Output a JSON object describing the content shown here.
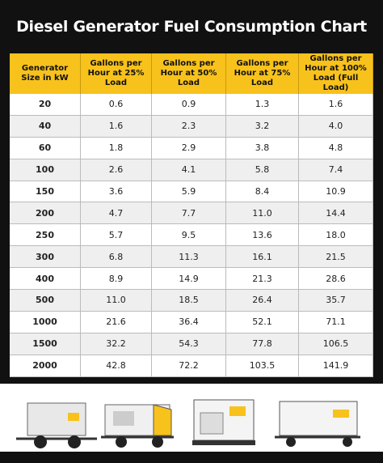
{
  "header": {
    "title": "Diesel Generator Fuel Consumption Chart"
  },
  "table": {
    "columns": [
      "Generator Size in kW",
      "Gallons per Hour at 25% Load",
      "Gallons per Hour at 50% Load",
      "Gallons per Hour at 75% Load",
      "Gallons per Hour at 100% Load (Full Load)"
    ],
    "rows": [
      [
        "20",
        "0.6",
        "0.9",
        "1.3",
        "1.6"
      ],
      [
        "40",
        "1.6",
        "2.3",
        "3.2",
        "4.0"
      ],
      [
        "60",
        "1.8",
        "2.9",
        "3.8",
        "4.8"
      ],
      [
        "100",
        "2.6",
        "4.1",
        "5.8",
        "7.4"
      ],
      [
        "150",
        "3.6",
        "5.9",
        "8.4",
        "10.9"
      ],
      [
        "200",
        "4.7",
        "7.7",
        "11.0",
        "14.4"
      ],
      [
        "250",
        "5.7",
        "9.5",
        "13.6",
        "18.0"
      ],
      [
        "300",
        "6.8",
        "11.3",
        "16.1",
        "21.5"
      ],
      [
        "400",
        "8.9",
        "14.9",
        "21.3",
        "28.6"
      ],
      [
        "500",
        "11.0",
        "18.5",
        "26.4",
        "35.7"
      ],
      [
        "1000",
        "21.6",
        "36.4",
        "52.1",
        "71.1"
      ],
      [
        "1500",
        "32.2",
        "54.3",
        "77.8",
        "106.5"
      ],
      [
        "2000",
        "42.8",
        "72.2",
        "103.5",
        "141.9"
      ]
    ]
  }
}
